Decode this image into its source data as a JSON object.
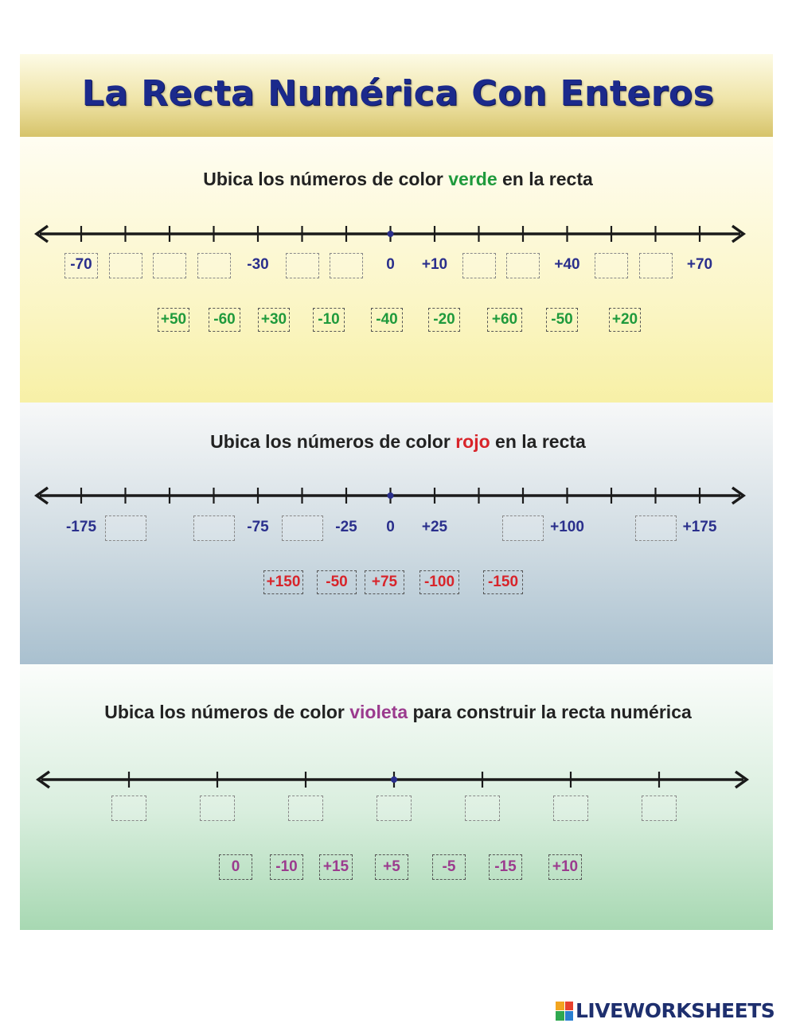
{
  "title": "La Recta Numérica Con Enteros",
  "sections": [
    {
      "instruction_pre": "Ubica los números de color ",
      "instruction_color": "verde",
      "instruction_post": " en la recta",
      "ticks": [
        -70,
        -60,
        -50,
        -40,
        -30,
        -20,
        -10,
        0,
        10,
        20,
        30,
        40,
        50,
        60,
        70
      ],
      "labels": [
        {
          "value": -70,
          "text": "-70",
          "boxed": true
        },
        {
          "value": -30,
          "text": "-30",
          "boxed": false
        },
        {
          "value": 0,
          "text": "0",
          "boxed": false
        },
        {
          "value": 10,
          "text": "+10",
          "boxed": false
        },
        {
          "value": 40,
          "text": "+40",
          "boxed": false
        },
        {
          "value": 70,
          "text": "+70",
          "boxed": false
        }
      ],
      "blank_values": [
        -60,
        -50,
        -40,
        -20,
        -10,
        20,
        30,
        50,
        60
      ],
      "chips": [
        "+50",
        "-60",
        "+30",
        "-10",
        "-40",
        "-20",
        "+60",
        "-50",
        "+20"
      ],
      "chip_color": "#1f9a3c"
    },
    {
      "instruction_pre": "Ubica los números de color ",
      "instruction_color": "rojo",
      "instruction_post": " en la recta",
      "ticks": [
        -175,
        -150,
        -125,
        -100,
        -75,
        -50,
        -25,
        0,
        25,
        50,
        75,
        100,
        125,
        150,
        175
      ],
      "labels": [
        {
          "value": -175,
          "text": "-175",
          "boxed": false
        },
        {
          "value": -75,
          "text": "-75",
          "boxed": false
        },
        {
          "value": -25,
          "text": "-25",
          "boxed": false
        },
        {
          "value": 0,
          "text": "0",
          "boxed": false
        },
        {
          "value": 25,
          "text": "+25",
          "boxed": false
        },
        {
          "value": 100,
          "text": "+100",
          "boxed": false
        },
        {
          "value": 175,
          "text": "+175",
          "boxed": false
        }
      ],
      "blank_values": [
        -150,
        -100,
        -50,
        75,
        150
      ],
      "chips": [
        "+150",
        "-50",
        "+75",
        "-100",
        "-150"
      ],
      "chip_color": "#d8242a"
    },
    {
      "instruction_pre": "Ubica los números de color ",
      "instruction_color": "violeta",
      "instruction_post": " para construir la recta numérica",
      "ticks": [
        -15,
        -10,
        -5,
        0,
        5,
        10,
        15
      ],
      "labels": [],
      "blank_values": [
        -15,
        -10,
        -5,
        0,
        5,
        10,
        15
      ],
      "chips": [
        "0",
        "-10",
        "+15",
        "+5",
        "-5",
        "-15",
        "+10"
      ],
      "chip_color": "#9b3b8e"
    }
  ],
  "logo_text": "LIVEWORKSHEETS",
  "colors": {
    "line": "#1a1a1a",
    "label": "#2a2f8c",
    "zero_dot": "#2a2f8c"
  }
}
